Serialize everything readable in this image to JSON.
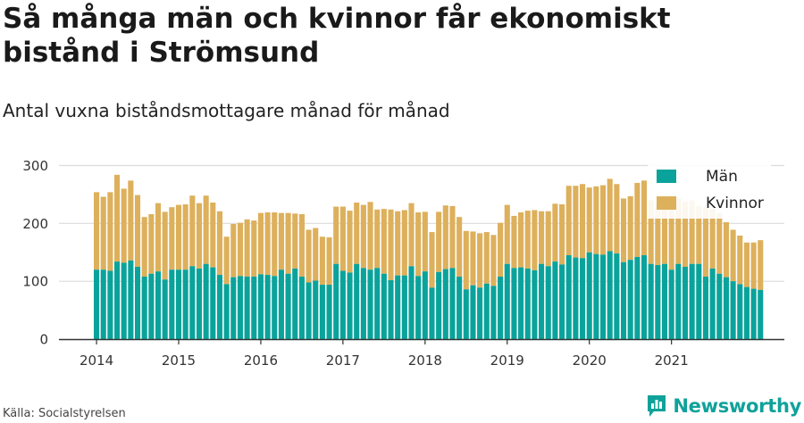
{
  "title": "Så många män och kvinnor får ekonomiskt bistånd i Strömsund",
  "subtitle": "Antal vuxna biståndsmottagare månad för månad",
  "source": "Källa: Socialstyrelsen",
  "brand": {
    "name": "Newsworthy",
    "icon": "newsworthy-logo-icon",
    "color": "#0fa29a"
  },
  "chart_data": {
    "type": "bar",
    "stacked": true,
    "x_ticks": [
      "2014",
      "2015",
      "2016",
      "2017",
      "2018",
      "2019",
      "2020",
      "2021"
    ],
    "y_ticks": [
      "0",
      "100",
      "200",
      "300"
    ],
    "ylim": [
      0,
      300
    ],
    "grid": true,
    "legend_position": "top-right",
    "start_month": "2014-01",
    "series": [
      {
        "name": "Män",
        "color": "#0aa39b",
        "values": [
          120,
          120,
          118,
          134,
          132,
          136,
          125,
          108,
          113,
          117,
          103,
          120,
          120,
          120,
          126,
          122,
          130,
          124,
          111,
          95,
          107,
          109,
          108,
          108,
          112,
          111,
          109,
          120,
          113,
          122,
          108,
          98,
          101,
          94,
          94,
          130,
          118,
          115,
          130,
          123,
          120,
          123,
          113,
          102,
          110,
          110,
          126,
          109,
          117,
          89,
          116,
          121,
          123,
          108,
          86,
          93,
          89,
          96,
          92,
          108,
          130,
          123,
          124,
          122,
          119,
          130,
          126,
          134,
          129,
          145,
          141,
          140,
          150,
          147,
          146,
          152,
          148,
          133,
          137,
          142,
          145,
          130,
          128,
          130,
          120,
          130,
          125,
          130,
          130,
          108,
          122,
          113,
          107,
          100,
          95,
          90,
          87,
          85
        ],
        "ylabel": ""
      },
      {
        "name": "Kvinnor",
        "color": "#ddb05c",
        "values": [
          134,
          126,
          136,
          150,
          128,
          138,
          124,
          103,
          103,
          118,
          117,
          108,
          112,
          113,
          122,
          113,
          118,
          112,
          110,
          82,
          92,
          92,
          99,
          97,
          106,
          108,
          110,
          98,
          105,
          95,
          108,
          91,
          91,
          83,
          82,
          99,
          111,
          107,
          106,
          109,
          117,
          101,
          112,
          122,
          111,
          113,
          109,
          110,
          103,
          96,
          104,
          110,
          107,
          103,
          101,
          93,
          94,
          89,
          88,
          93,
          102,
          90,
          95,
          100,
          104,
          91,
          95,
          100,
          104,
          120,
          124,
          128,
          112,
          117,
          120,
          125,
          120,
          110,
          110,
          128,
          129,
          110,
          107,
          105,
          115,
          113,
          113,
          110,
          100,
          120,
          103,
          105,
          95,
          89,
          84,
          77,
          80,
          86
        ]
      }
    ]
  }
}
